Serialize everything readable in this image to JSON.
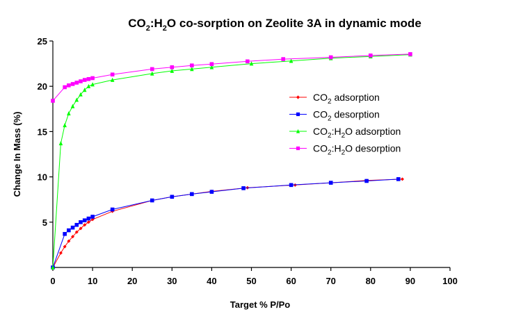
{
  "chart_data": {
    "type": "scatter",
    "title": "CO2:H2O co-sorption on Zeolite 3A in dynamic mode",
    "title_parts": {
      "a": "CO",
      "sub1": "2",
      "b": ":H",
      "sub2": "2",
      "c": "O co-sorption on Zeolite 3A in dynamic mode"
    },
    "xlabel": "Target % P/Po",
    "ylabel": "Change In Mass (%)",
    "xlim": [
      0,
      100
    ],
    "ylim": [
      0,
      25
    ],
    "xticks": [
      0,
      10,
      20,
      30,
      40,
      50,
      60,
      70,
      80,
      90,
      100
    ],
    "yticks": [
      5,
      10,
      15,
      20,
      25
    ],
    "legend_position": "right",
    "series": [
      {
        "name": "CO2 adsorption",
        "legend": {
          "pre": "CO",
          "sub": "2",
          "post": " adsorption"
        },
        "color": "#ff0000",
        "marker": "diamond",
        "x": [
          0,
          2,
          3,
          4,
          5,
          6,
          7,
          8,
          9,
          10,
          15,
          25,
          30,
          35,
          40,
          49,
          61,
          70,
          79,
          88
        ],
        "y": [
          0,
          1.6,
          2.3,
          2.9,
          3.4,
          3.9,
          4.3,
          4.7,
          5.0,
          5.3,
          6.2,
          7.4,
          7.8,
          8.1,
          8.4,
          8.8,
          9.1,
          9.35,
          9.6,
          9.75
        ]
      },
      {
        "name": "CO2 desorption",
        "legend": {
          "pre": "CO",
          "sub": "2",
          "post": " desorption"
        },
        "color": "#0000ff",
        "marker": "square",
        "x": [
          0,
          3,
          4,
          5,
          6,
          7,
          8,
          9,
          10,
          15,
          25,
          30,
          35,
          40,
          48,
          60,
          70,
          79,
          87
        ],
        "y": [
          0,
          3.7,
          4.1,
          4.4,
          4.7,
          5.0,
          5.2,
          5.4,
          5.6,
          6.4,
          7.4,
          7.8,
          8.1,
          8.35,
          8.75,
          9.1,
          9.35,
          9.55,
          9.75
        ]
      },
      {
        "name": "CO2:H2O adsorption",
        "legend": {
          "pre": "CO",
          "sub": "2",
          "mid": ":H",
          "sub2": "2",
          "post": "O adsorption"
        },
        "color": "#00ff00",
        "marker": "triangle",
        "x": [
          0,
          2,
          3,
          4,
          5,
          6,
          7,
          8,
          9,
          10,
          15,
          25,
          30,
          35,
          40,
          50,
          60,
          70,
          80,
          90
        ],
        "y": [
          0,
          13.7,
          15.7,
          17.0,
          17.8,
          18.5,
          19.1,
          19.6,
          20.0,
          20.2,
          20.7,
          21.4,
          21.7,
          21.9,
          22.1,
          22.5,
          22.8,
          23.1,
          23.3,
          23.5
        ]
      },
      {
        "name": "CO2:H2O desorption",
        "legend": {
          "pre": "CO",
          "sub": "2",
          "mid": ":H",
          "sub2": "2",
          "post": "O desorption"
        },
        "color": "#ff00ff",
        "marker": "square",
        "x": [
          0,
          3,
          4,
          5,
          6,
          7,
          8,
          9,
          10,
          15,
          25,
          30,
          35,
          40,
          49,
          58,
          70,
          80,
          90
        ],
        "y": [
          18.4,
          19.9,
          20.1,
          20.25,
          20.4,
          20.55,
          20.7,
          20.8,
          20.9,
          21.3,
          21.9,
          22.1,
          22.3,
          22.45,
          22.75,
          23.0,
          23.2,
          23.4,
          23.55
        ]
      }
    ]
  }
}
